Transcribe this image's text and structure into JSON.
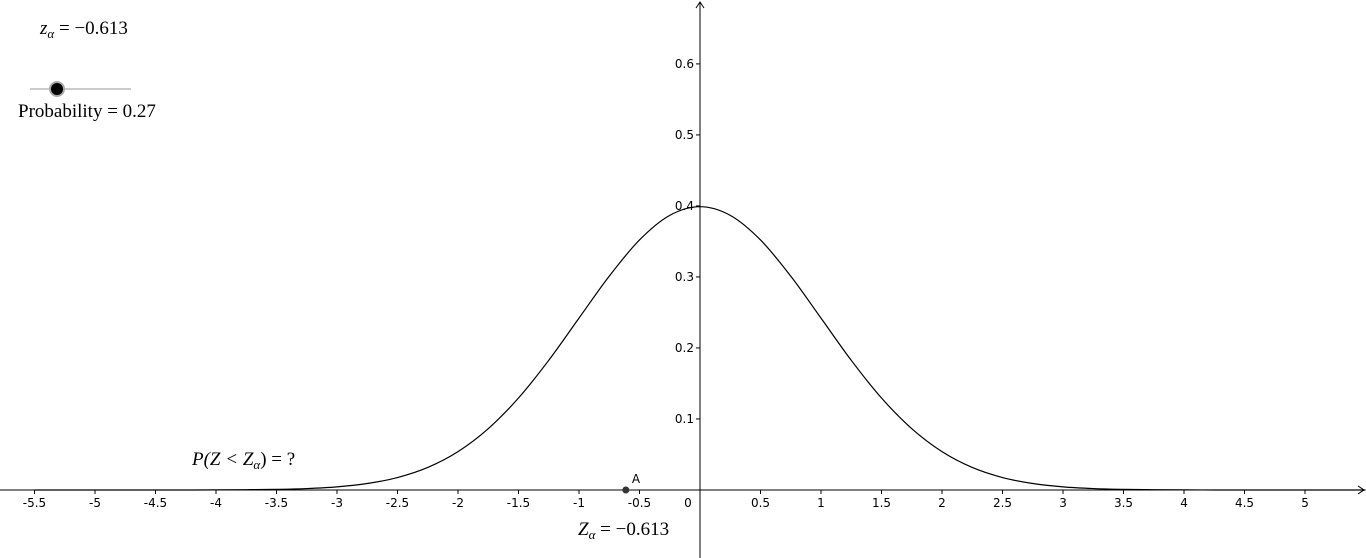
{
  "chart_data": {
    "type": "line",
    "x": [
      -5.5,
      -5.25,
      -5,
      -4.75,
      -4.5,
      -4.25,
      -4,
      -3.75,
      -3.5,
      -3.25,
      -3,
      -2.75,
      -2.5,
      -2.25,
      -2,
      -1.75,
      -1.5,
      -1.25,
      -1,
      -0.75,
      -0.5,
      -0.25,
      0,
      0.25,
      0.5,
      0.75,
      1,
      1.25,
      1.5,
      1.75,
      2,
      2.25,
      2.5,
      2.75,
      3,
      3.25,
      3.5,
      3.75,
      4,
      4.25,
      4.5,
      4.75,
      5,
      5.25,
      5.5
    ],
    "series": [
      {
        "color": "#000000",
        "values": [
          0,
          0,
          0,
          0,
          0,
          0,
          0.0001,
          0.0004,
          0.0009,
          0.002,
          0.0044,
          0.0091,
          0.0175,
          0.0317,
          0.054,
          0.0863,
          0.1295,
          0.1826,
          0.242,
          0.3011,
          0.3521,
          0.3867,
          0.3989,
          0.3867,
          0.3521,
          0.3011,
          0.242,
          0.1826,
          0.1295,
          0.0863,
          0.054,
          0.0317,
          0.0175,
          0.0091,
          0.0044,
          0.002,
          0.0009,
          0.0004,
          0.0001,
          0,
          0,
          0,
          0,
          0,
          0
        ]
      }
    ],
    "xlim": [
      -5.785,
      5.504
    ],
    "ylim": [
      -0.0958,
      0.69
    ],
    "xticks": [
      -5.5,
      -5,
      -4.5,
      -4,
      -3.5,
      -3,
      -2.5,
      -2,
      -1.5,
      -1,
      -0.5,
      0,
      0.5,
      1,
      1.5,
      2,
      2.5,
      3,
      3.5,
      4,
      4.5,
      5
    ],
    "yticks": [
      0.1,
      0.2,
      0.3,
      0.4,
      0.5,
      0.6
    ],
    "point": {
      "label": "A",
      "x": -0.613,
      "y": 0
    },
    "top_label": {
      "symbol": "z",
      "subscript": "α",
      "text": " = −0.613"
    },
    "slider_label": "Probability = 0.27",
    "question": {
      "prefix": "P(Z < Z",
      "subscript": "α",
      "suffix": ") = ?"
    },
    "bottom_label": {
      "symbol": "Z",
      "subscript": "α",
      "text": " = −0.613"
    }
  }
}
